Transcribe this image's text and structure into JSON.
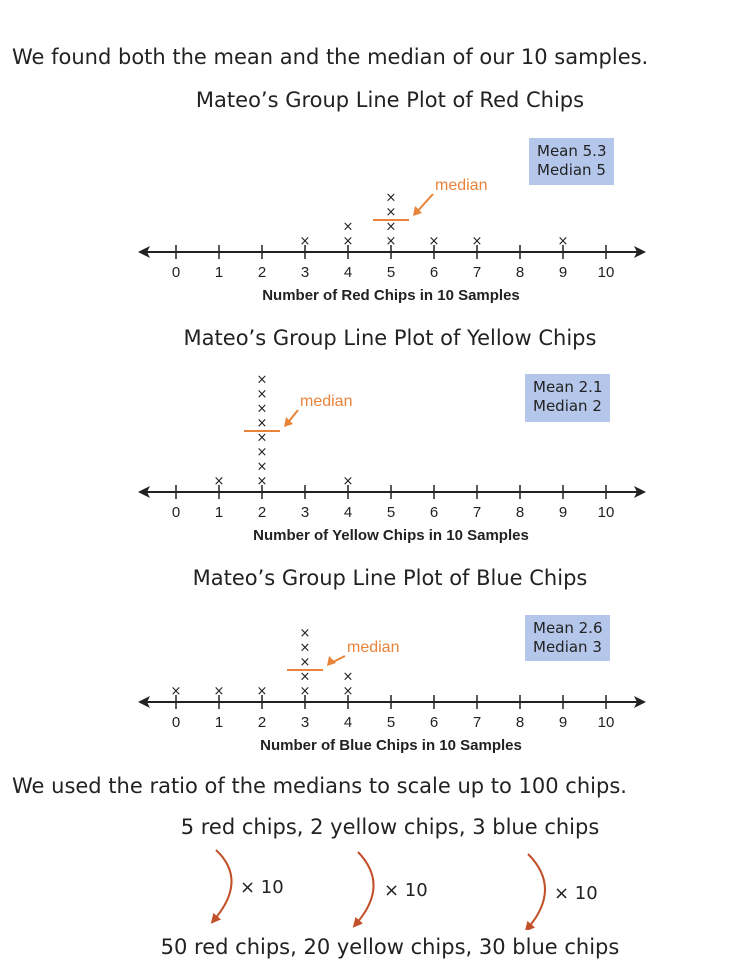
{
  "intro_text": "We found both the mean and the median of our 10 samples.",
  "axis": {
    "ticks": [
      "0",
      "1",
      "2",
      "3",
      "4",
      "5",
      "6",
      "7",
      "8",
      "9",
      "10"
    ]
  },
  "colors": {
    "accent": "#e8833a",
    "stats_box": "#b4c6ea",
    "arrow": "#c2502a"
  },
  "median_label": "median",
  "chart_data": [
    {
      "type": "scatter",
      "title": "Mateo’s Group Line Plot of Red Chips",
      "xlabel": "Number of Red Chips in 10 Samples",
      "xlim": [
        0,
        10
      ],
      "points": [
        {
          "x": 3,
          "count": 1
        },
        {
          "x": 4,
          "count": 2
        },
        {
          "x": 5,
          "count": 4
        },
        {
          "x": 6,
          "count": 1
        },
        {
          "x": 7,
          "count": 1
        },
        {
          "x": 9,
          "count": 1
        }
      ],
      "mean_text": "Mean 5.3",
      "median_text": "Median 5",
      "median": 5
    },
    {
      "type": "scatter",
      "title": "Mateo’s Group Line Plot of Yellow Chips",
      "xlabel": "Number of Yellow Chips in 10 Samples",
      "xlim": [
        0,
        10
      ],
      "points": [
        {
          "x": 1,
          "count": 1
        },
        {
          "x": 2,
          "count": 8
        },
        {
          "x": 4,
          "count": 1
        }
      ],
      "mean_text": "Mean 2.1",
      "median_text": "Median 2",
      "median": 2
    },
    {
      "type": "scatter",
      "title": "Mateo’s Group Line Plot of Blue Chips",
      "xlabel": "Number of Blue Chips in 10 Samples",
      "xlim": [
        0,
        10
      ],
      "points": [
        {
          "x": 0,
          "count": 1
        },
        {
          "x": 1,
          "count": 1
        },
        {
          "x": 2,
          "count": 1
        },
        {
          "x": 3,
          "count": 5
        },
        {
          "x": 4,
          "count": 2
        }
      ],
      "mean_text": "Mean 2.6",
      "median_text": "Median 3",
      "median": 3
    }
  ],
  "outro_text": "We used the ratio of the medians to scale up to 100 chips.",
  "scale_from": "5 red chips, 2 yellow chips, 3 blue chips",
  "scale_to": "50 red chips, 20 yellow chips, 30 blue chips",
  "multiplier": "× 10"
}
